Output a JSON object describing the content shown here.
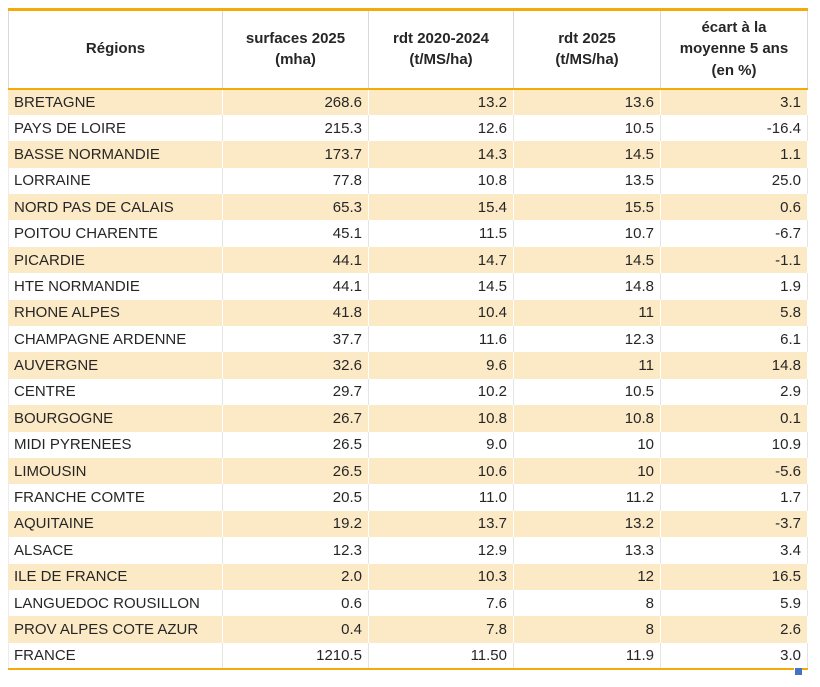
{
  "table": {
    "headers": [
      "Régions",
      "surfaces 2025\n(mha)",
      "rdt 2020-2024\n(t/MS/ha)",
      "rdt 2025\n(t/MS/ha)",
      "écart à la\nmoyenne 5 ans\n(en %)"
    ],
    "rows": [
      {
        "region": "BRETAGNE",
        "cells": [
          "268.6",
          "13.2",
          "13.6",
          "3.1"
        ]
      },
      {
        "region": "PAYS DE LOIRE",
        "cells": [
          "215.3",
          "12.6",
          "10.5",
          "-16.4"
        ]
      },
      {
        "region": "BASSE NORMANDIE",
        "cells": [
          "173.7",
          "14.3",
          "14.5",
          "1.1"
        ]
      },
      {
        "region": "LORRAINE",
        "cells": [
          "77.8",
          "10.8",
          "13.5",
          "25.0"
        ]
      },
      {
        "region": "NORD PAS DE CALAIS",
        "cells": [
          "65.3",
          "15.4",
          "15.5",
          "0.6"
        ]
      },
      {
        "region": "POITOU CHARENTE",
        "cells": [
          "45.1",
          "11.5",
          "10.7",
          "-6.7"
        ]
      },
      {
        "region": "PICARDIE",
        "cells": [
          "44.1",
          "14.7",
          "14.5",
          "-1.1"
        ]
      },
      {
        "region": "HTE NORMANDIE",
        "cells": [
          "44.1",
          "14.5",
          "14.8",
          "1.9"
        ]
      },
      {
        "region": "RHONE ALPES",
        "cells": [
          "41.8",
          "10.4",
          "11",
          "5.8"
        ]
      },
      {
        "region": "CHAMPAGNE ARDENNE",
        "cells": [
          "37.7",
          "11.6",
          "12.3",
          "6.1"
        ]
      },
      {
        "region": "AUVERGNE",
        "cells": [
          "32.6",
          "9.6",
          "11",
          "14.8"
        ]
      },
      {
        "region": "CENTRE",
        "cells": [
          "29.7",
          "10.2",
          "10.5",
          "2.9"
        ]
      },
      {
        "region": "BOURGOGNE",
        "cells": [
          "26.7",
          "10.8",
          "10.8",
          "0.1"
        ]
      },
      {
        "region": "MIDI PYRENEES",
        "cells": [
          "26.5",
          "9.0",
          "10",
          "10.9"
        ]
      },
      {
        "region": "LIMOUSIN",
        "cells": [
          "26.5",
          "10.6",
          "10",
          "-5.6"
        ]
      },
      {
        "region": "FRANCHE COMTE",
        "cells": [
          "20.5",
          "11.0",
          "11.2",
          "1.7"
        ]
      },
      {
        "region": "AQUITAINE",
        "cells": [
          "19.2",
          "13.7",
          "13.2",
          "-3.7"
        ]
      },
      {
        "region": "ALSACE",
        "cells": [
          "12.3",
          "12.9",
          "13.3",
          "3.4"
        ]
      },
      {
        "region": "ILE DE FRANCE",
        "cells": [
          "2.0",
          "10.3",
          "12",
          "16.5"
        ]
      },
      {
        "region": "LANGUEDOC ROUSILLON",
        "cells": [
          "0.6",
          "7.6",
          "8",
          "5.9"
        ]
      },
      {
        "region": "PROV ALPES COTE AZUR",
        "cells": [
          "0.4",
          "7.8",
          "8",
          "2.6"
        ]
      },
      {
        "region": "FRANCE",
        "cells": [
          "1210.5",
          "11.50",
          "11.9",
          "3.0"
        ]
      }
    ]
  },
  "chart_data": {
    "type": "table",
    "columns": [
      "Régions",
      "surfaces 2025 (mha)",
      "rdt 2020-2024 (t/MS/ha)",
      "rdt 2025 (t/MS/ha)",
      "écart à la moyenne 5 ans (en %)"
    ],
    "rows": [
      [
        "BRETAGNE",
        268.6,
        13.2,
        13.6,
        3.1
      ],
      [
        "PAYS DE LOIRE",
        215.3,
        12.6,
        10.5,
        -16.4
      ],
      [
        "BASSE NORMANDIE",
        173.7,
        14.3,
        14.5,
        1.1
      ],
      [
        "LORRAINE",
        77.8,
        10.8,
        13.5,
        25.0
      ],
      [
        "NORD PAS DE CALAIS",
        65.3,
        15.4,
        15.5,
        0.6
      ],
      [
        "POITOU CHARENTE",
        45.1,
        11.5,
        10.7,
        -6.7
      ],
      [
        "PICARDIE",
        44.1,
        14.7,
        14.5,
        -1.1
      ],
      [
        "HTE NORMANDIE",
        44.1,
        14.5,
        14.8,
        1.9
      ],
      [
        "RHONE ALPES",
        41.8,
        10.4,
        11,
        5.8
      ],
      [
        "CHAMPAGNE ARDENNE",
        37.7,
        11.6,
        12.3,
        6.1
      ],
      [
        "AUVERGNE",
        32.6,
        9.6,
        11,
        14.8
      ],
      [
        "CENTRE",
        29.7,
        10.2,
        10.5,
        2.9
      ],
      [
        "BOURGOGNE",
        26.7,
        10.8,
        10.8,
        0.1
      ],
      [
        "MIDI PYRENEES",
        26.5,
        9.0,
        10,
        10.9
      ],
      [
        "LIMOUSIN",
        26.5,
        10.6,
        10,
        -5.6
      ],
      [
        "FRANCHE COMTE",
        20.5,
        11.0,
        11.2,
        1.7
      ],
      [
        "AQUITAINE",
        19.2,
        13.7,
        13.2,
        -3.7
      ],
      [
        "ALSACE",
        12.3,
        12.9,
        13.3,
        3.4
      ],
      [
        "ILE DE FRANCE",
        2.0,
        10.3,
        12,
        16.5
      ],
      [
        "LANGUEDOC ROUSILLON",
        0.6,
        7.6,
        8,
        5.9
      ],
      [
        "PROV ALPES COTE AZUR",
        0.4,
        7.8,
        8,
        2.6
      ],
      [
        "FRANCE",
        1210.5,
        11.5,
        11.9,
        3.0
      ]
    ]
  },
  "colors": {
    "stripe_fill": "#FCEAC6",
    "accent_border": "#F5AB07",
    "grid_line": "#D9D9D9",
    "text": "#262626",
    "selection_handle": "#4472C4"
  }
}
